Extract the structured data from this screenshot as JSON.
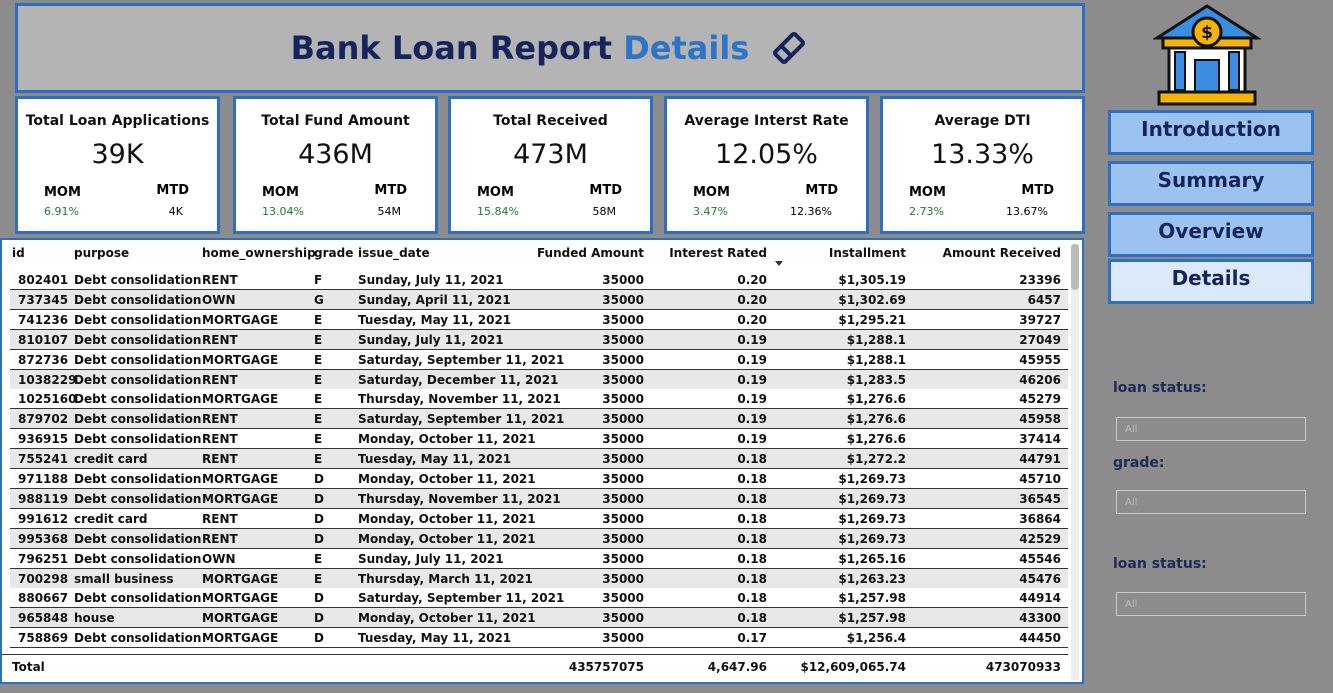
{
  "header": {
    "title": "Bank Loan Report",
    "title_highlight": "Details"
  },
  "kpis": [
    {
      "label": "Total Loan Applications",
      "value": "39K",
      "mom_label": "MOM",
      "mom": "6.91%",
      "mtd_label": "MTD",
      "mtd": "4K"
    },
    {
      "label": "Total Fund Amount",
      "value": "436M",
      "mom_label": "MOM",
      "mom": "13.04%",
      "mtd_label": "MTD",
      "mtd": "54M"
    },
    {
      "label": "Total Received",
      "value": "473M",
      "mom_label": "MOM",
      "mom": "15.84%",
      "mtd_label": "MTD",
      "mtd": "58M"
    },
    {
      "label": "Average Interst Rate",
      "value": "12.05%",
      "mom_label": "MOM",
      "mom": "3.47%",
      "mtd_label": "MTD",
      "mtd": "12.36%"
    },
    {
      "label": "Average DTI",
      "value": "13.33%",
      "mom_label": "MOM",
      "mom": "2.73%",
      "mtd_label": "MTD",
      "mtd": "13.67%"
    }
  ],
  "nav": [
    "Introduction",
    "Summary",
    "Overview",
    "Details"
  ],
  "filters": [
    {
      "label": "loan status:",
      "value": "All"
    },
    {
      "label": "grade:",
      "value": "All"
    },
    {
      "label": "loan status:",
      "value": "All"
    }
  ],
  "table": {
    "columns": [
      "id",
      "purpose",
      "home_ownership",
      "grade",
      "issue_date",
      "Funded Amount",
      "Interest Rated",
      "Installment",
      "Amount Received"
    ],
    "rows": [
      [
        "802401",
        "Debt consolidation",
        "RENT",
        "F",
        "Sunday, July 11, 2021",
        "35000",
        "0.20",
        "$1,305.19",
        "23396"
      ],
      [
        "737345",
        "Debt consolidation",
        "OWN",
        "G",
        "Sunday, April 11, 2021",
        "35000",
        "0.20",
        "$1,302.69",
        "6457"
      ],
      [
        "741236",
        "Debt consolidation",
        "MORTGAGE",
        "E",
        "Tuesday, May 11, 2021",
        "35000",
        "0.20",
        "$1,295.21",
        "39727"
      ],
      [
        "810107",
        "Debt consolidation",
        "RENT",
        "E",
        "Sunday, July 11, 2021",
        "35000",
        "0.19",
        "$1,288.1",
        "27049"
      ],
      [
        "872736",
        "Debt consolidation",
        "MORTGAGE",
        "E",
        "Saturday, September 11, 2021",
        "35000",
        "0.19",
        "$1,288.1",
        "45955"
      ],
      [
        "1038229",
        "Debt consolidation",
        "RENT",
        "E",
        "Saturday, December 11, 2021",
        "35000",
        "0.19",
        "$1,283.5",
        "46206"
      ],
      [
        "1025160",
        "Debt consolidation",
        "MORTGAGE",
        "E",
        "Thursday, November 11, 2021",
        "35000",
        "0.19",
        "$1,276.6",
        "45279"
      ],
      [
        "879702",
        "Debt consolidation",
        "RENT",
        "E",
        "Saturday, September 11, 2021",
        "35000",
        "0.19",
        "$1,276.6",
        "45958"
      ],
      [
        "936915",
        "Debt consolidation",
        "RENT",
        "E",
        "Monday, October 11, 2021",
        "35000",
        "0.19",
        "$1,276.6",
        "37414"
      ],
      [
        "755241",
        "credit card",
        "RENT",
        "E",
        "Tuesday, May 11, 2021",
        "35000",
        "0.18",
        "$1,272.2",
        "44791"
      ],
      [
        "971188",
        "Debt consolidation",
        "MORTGAGE",
        "D",
        "Monday, October 11, 2021",
        "35000",
        "0.18",
        "$1,269.73",
        "45710"
      ],
      [
        "988119",
        "Debt consolidation",
        "MORTGAGE",
        "D",
        "Thursday, November 11, 2021",
        "35000",
        "0.18",
        "$1,269.73",
        "36545"
      ],
      [
        "991612",
        "credit card",
        "RENT",
        "D",
        "Monday, October 11, 2021",
        "35000",
        "0.18",
        "$1,269.73",
        "36864"
      ],
      [
        "995368",
        "Debt consolidation",
        "RENT",
        "D",
        "Monday, October 11, 2021",
        "35000",
        "0.18",
        "$1,269.73",
        "42529"
      ],
      [
        "796251",
        "Debt consolidation",
        "OWN",
        "E",
        "Sunday, July 11, 2021",
        "35000",
        "0.18",
        "$1,265.16",
        "45546"
      ],
      [
        "700298",
        "small business",
        "MORTGAGE",
        "E",
        "Thursday, March 11, 2021",
        "35000",
        "0.18",
        "$1,263.23",
        "45476"
      ],
      [
        "880667",
        "Debt consolidation",
        "MORTGAGE",
        "D",
        "Saturday, September 11, 2021",
        "35000",
        "0.18",
        "$1,257.98",
        "44914"
      ],
      [
        "965848",
        "house",
        "MORTGAGE",
        "D",
        "Monday, October 11, 2021",
        "35000",
        "0.18",
        "$1,257.98",
        "43300"
      ],
      [
        "758869",
        "Debt consolidation",
        "MORTGAGE",
        "D",
        "Tuesday, May 11, 2021",
        "35000",
        "0.17",
        "$1,256.4",
        "44450"
      ]
    ],
    "total": {
      "label": "Total",
      "funded": "435757075",
      "interest": "4,647.96",
      "installment": "$12,609,065.74",
      "received": "473070933"
    }
  }
}
